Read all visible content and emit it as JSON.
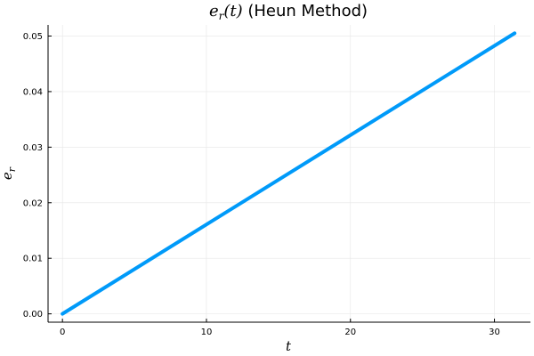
{
  "chart_data": {
    "type": "line",
    "title_math_e": "e",
    "title_math_sub": "r",
    "title_math_arg": "(t)",
    "title_text": " (Heun Method)",
    "xlabel": "t",
    "ylabel_main": "e",
    "ylabel_sub": "r",
    "xlim": [
      -1,
      32.5
    ],
    "ylim": [
      -0.0015,
      0.052
    ],
    "xticks": [
      0,
      10,
      20,
      30
    ],
    "xtick_labels": [
      "0",
      "10",
      "20",
      "30"
    ],
    "yticks": [
      0.0,
      0.01,
      0.02,
      0.03,
      0.04,
      0.05
    ],
    "ytick_labels": [
      "0.00",
      "0.01",
      "0.02",
      "0.03",
      "0.04",
      "0.05"
    ],
    "grid": true,
    "legend": "none",
    "series": [
      {
        "color": "#009af9",
        "x": [
          0,
          31.4
        ],
        "y": [
          0.0,
          0.0505
        ]
      }
    ]
  }
}
